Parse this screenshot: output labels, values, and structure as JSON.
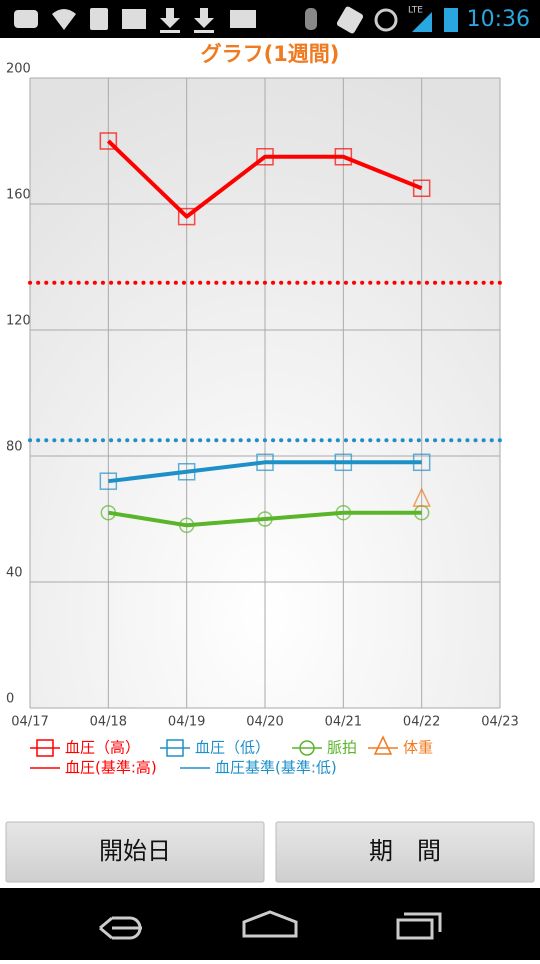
{
  "status_bar": {
    "time": "10:36",
    "network": "LTE"
  },
  "chart_data": {
    "type": "line",
    "title": "グラフ(1週間)",
    "categories": [
      "04/17",
      "04/18",
      "04/19",
      "04/20",
      "04/21",
      "04/22",
      "04/23"
    ],
    "ylim": [
      0,
      200
    ],
    "yticks": [
      0,
      40,
      80,
      120,
      160,
      200
    ],
    "grid": true,
    "series": [
      {
        "name": "血圧（高）",
        "color": "#ff0000",
        "marker": "square",
        "values": [
          null,
          180,
          156,
          175,
          175,
          165,
          null
        ]
      },
      {
        "name": "血圧（低）",
        "color": "#1e90c8",
        "marker": "square",
        "values": [
          null,
          72,
          75,
          78,
          78,
          78,
          null
        ]
      },
      {
        "name": "脈拍",
        "color": "#5ab52a",
        "marker": "circle",
        "values": [
          null,
          62,
          58,
          60,
          62,
          62,
          null
        ]
      },
      {
        "name": "体重",
        "color": "#f07a20",
        "marker": "triangle",
        "values": [
          null,
          null,
          null,
          null,
          null,
          66,
          null
        ]
      }
    ],
    "reference_lines": [
      {
        "name": "血圧(基準:高)",
        "color": "#ff0000",
        "value": 135
      },
      {
        "name": "血圧基準(基準:低)",
        "color": "#1e90c8",
        "value": 85
      }
    ]
  },
  "buttons": [
    "開始日",
    "期　間"
  ]
}
